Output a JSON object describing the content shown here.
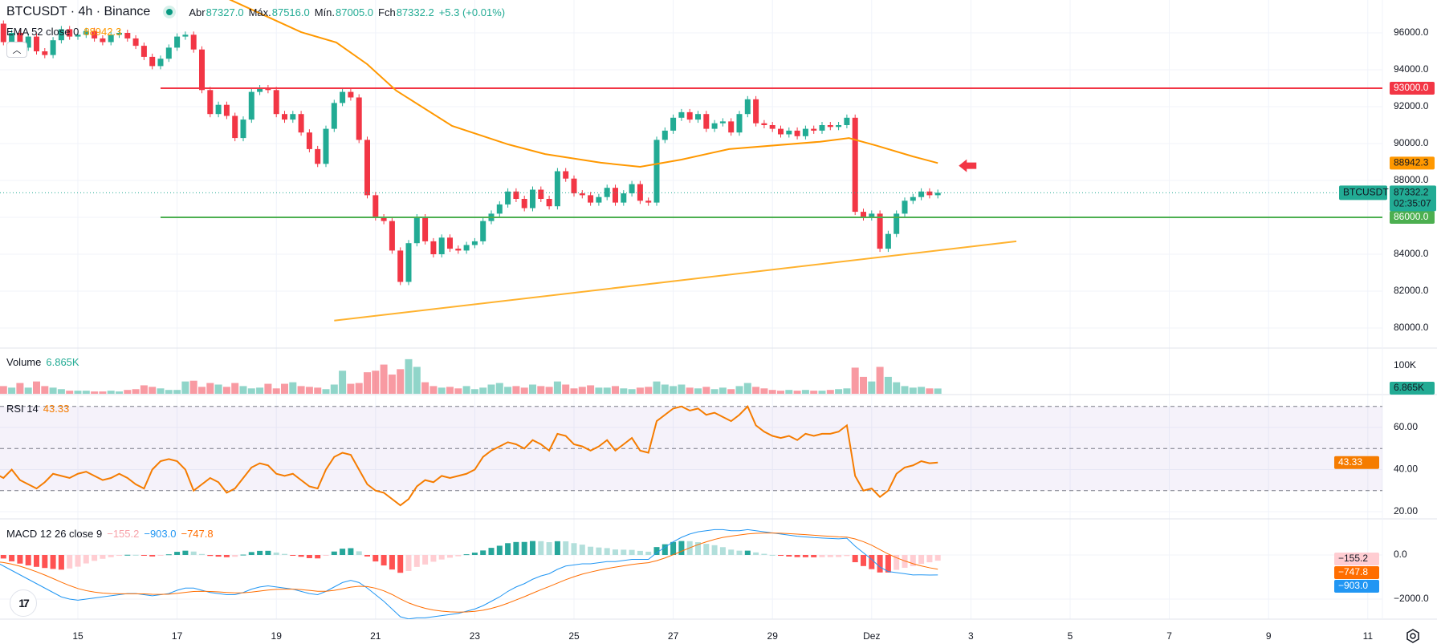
{
  "header": {
    "symbol_title": "BTCUSDT · 4h · Binance",
    "status_icon": "market-open-dot-icon",
    "open_label": "Abr",
    "open": "87327.0",
    "high_label": "Máx.",
    "high": "87516.0",
    "low_label": "Mín.",
    "low": "87005.0",
    "close_label": "Fch",
    "close": "87332.2",
    "change": "+5.3 (+0.01%)",
    "collapse_icon": "chevron-up-icon"
  },
  "indicators": {
    "ema": {
      "label": "EMA 52 close 0",
      "value": "88942.3",
      "color": "#ff9800"
    },
    "volume": {
      "label": "Volume",
      "value": "6.865K"
    },
    "rsi": {
      "label": "RSI 14",
      "value": "43.33",
      "color": "#f57c00"
    },
    "macd": {
      "label": "MACD 12 26 close 9",
      "hist": "−155.2",
      "macd": "−903.0",
      "signal": "−747.8",
      "hist_color": "#ffcdd2",
      "macd_color": "#2196f3",
      "signal_color": "#ff6d00"
    }
  },
  "colors": {
    "up": "#22ab94",
    "down": "#f23645",
    "grid": "#f0f3fa"
  },
  "chart_data": {
    "type": "candlestick",
    "symbol": "BTCUSDT",
    "interval": "4h",
    "first_candle": "11-13 08:00",
    "closes": [
      96500,
      95500,
      96000,
      95200,
      95800,
      95000,
      94800,
      95600,
      96200,
      95800,
      95900,
      96100,
      95700,
      95500,
      95900,
      96000,
      95700,
      95300,
      94700,
      94200,
      94600,
      95200,
      95800,
      95900,
      95100,
      92900,
      91600,
      92100,
      91500,
      90300,
      91300,
      92800,
      93000,
      92900,
      91600,
      91300,
      91600,
      90600,
      89700,
      88900,
      90800,
      92200,
      92800,
      92500,
      90200,
      87200,
      86000,
      85800,
      84200,
      82500,
      84600,
      86000,
      84700,
      84000,
      84900,
      84300,
      84200,
      84500,
      84700,
      85800,
      86200,
      86700,
      87400,
      87000,
      86500,
      87500,
      87000,
      86600,
      88500,
      88100,
      87300,
      87200,
      86800,
      87100,
      87600,
      86800,
      87300,
      87800,
      86900,
      86800,
      90200,
      90700,
      91400,
      91700,
      91300,
      91600,
      90800,
      91100,
      91200,
      90600,
      91600,
      92400,
      91100,
      91000,
      90800,
      90500,
      90700,
      90400,
      90800,
      90700,
      91000,
      90900,
      91000,
      91400,
      86300,
      86000,
      86200,
      84300,
      85100,
      86200,
      86900,
      87100,
      87400,
      87200,
      87332.2
    ],
    "volume_k": [
      18,
      10,
      8,
      14,
      8,
      16,
      10,
      8,
      6,
      4,
      4,
      4,
      3,
      3,
      4,
      3,
      5,
      6,
      11,
      9,
      7,
      5,
      5,
      16,
      17,
      9,
      14,
      12,
      9,
      14,
      10,
      7,
      8,
      13,
      7,
      13,
      15,
      10,
      9,
      8,
      6,
      12,
      30,
      13,
      14,
      28,
      30,
      38,
      25,
      32,
      45,
      35,
      15,
      10,
      8,
      9,
      7,
      10,
      6,
      8,
      12,
      14,
      9,
      10,
      8,
      12,
      10,
      9,
      16,
      12,
      7,
      9,
      11,
      8,
      8,
      10,
      7,
      6,
      8,
      9,
      16,
      12,
      10,
      12,
      8,
      7,
      9,
      6,
      8,
      6,
      10,
      14,
      9,
      7,
      5,
      4,
      5,
      4,
      5,
      4,
      4,
      5,
      6,
      7,
      34,
      22,
      16,
      35,
      22,
      15,
      10,
      8,
      9,
      7,
      6.865
    ],
    "rsi": [
      38,
      36,
      40,
      35,
      33,
      31,
      34,
      38,
      37,
      36,
      38,
      39,
      37,
      35,
      36,
      38,
      36,
      33,
      31,
      40,
      44,
      45,
      44,
      40,
      30,
      33,
      36,
      34,
      29,
      31,
      36,
      41,
      43,
      42,
      38,
      37,
      38,
      35,
      32,
      31,
      40,
      46,
      48,
      47,
      40,
      33,
      30,
      29,
      26,
      23,
      26,
      32,
      35,
      34,
      37,
      36,
      37,
      38,
      40,
      46,
      49,
      51,
      53,
      52,
      50,
      54,
      52,
      49,
      57,
      56,
      52,
      51,
      49,
      51,
      54,
      49,
      52,
      55,
      49,
      48,
      63,
      66,
      69,
      70,
      68,
      69,
      66,
      67,
      65,
      63,
      66,
      70,
      61,
      58,
      56,
      55,
      56,
      54,
      57,
      56,
      57,
      57,
      58,
      61,
      37,
      30,
      31,
      27,
      30,
      38,
      41,
      42,
      44,
      43,
      43.33
    ],
    "macd": [
      -300,
      -500,
      -700,
      -900,
      -1100,
      -1300,
      -1500,
      -1700,
      -1900,
      -2000,
      -2050,
      -2000,
      -1950,
      -1900,
      -1850,
      -1800,
      -1750,
      -1750,
      -1800,
      -1850,
      -1800,
      -1750,
      -1600,
      -1500,
      -1500,
      -1600,
      -1700,
      -1750,
      -1800,
      -1800,
      -1700,
      -1550,
      -1450,
      -1400,
      -1450,
      -1500,
      -1550,
      -1650,
      -1750,
      -1800,
      -1650,
      -1450,
      -1250,
      -1150,
      -1250,
      -1500,
      -1800,
      -2100,
      -2450,
      -2800,
      -2900,
      -2850,
      -2850,
      -2800,
      -2750,
      -2700,
      -2650,
      -2550,
      -2450,
      -2300,
      -2100,
      -1900,
      -1650,
      -1450,
      -1300,
      -1100,
      -950,
      -850,
      -650,
      -500,
      -450,
      -400,
      -400,
      -350,
      -300,
      -300,
      -250,
      -200,
      -200,
      -200,
      100,
      350,
      600,
      800,
      950,
      1050,
      1100,
      1150,
      1150,
      1100,
      1100,
      1150,
      1100,
      1050,
      1000,
      950,
      900,
      850,
      820,
      790,
      770,
      750,
      730,
      760,
      400,
      100,
      -200,
      -550,
      -750,
      -800,
      -850,
      -903,
      -900,
      -910,
      -903
    ],
    "ema52": [
      [
        "11-17 12:00",
        98500
      ],
      [
        "11-18 02:00",
        97780
      ],
      [
        "11-19 12:00",
        96040
      ],
      [
        "11-20 05:00",
        95480
      ],
      [
        "11-20 20:00",
        94300
      ],
      [
        "11-21 10:00",
        92870
      ],
      [
        "11-22 13:00",
        90960
      ],
      [
        "11-23 16:00",
        89960
      ],
      [
        "11-24 10:00",
        89430
      ],
      [
        "11-25 13:00",
        88960
      ],
      [
        "11-26 08:00",
        88740
      ],
      [
        "11-27 04:00",
        89130
      ],
      [
        "11-28 03:00",
        89700
      ],
      [
        "11-29 23:00",
        90100
      ],
      [
        "11-30 13:00",
        90300
      ],
      [
        "12-01 02:00",
        89900
      ],
      [
        "12-01 20:00",
        89300
      ],
      [
        "12-02 08:00",
        88942.3
      ]
    ],
    "hlines": [
      {
        "price": 93000,
        "label": "93000.0",
        "color": "#f23645",
        "from": "11-16 16:00"
      },
      {
        "price": 86000,
        "label": "86000.0",
        "color": "#4caf50",
        "from": "11-16 16:00"
      }
    ],
    "trendline": {
      "from": [
        "11-20 04:00",
        80400
      ],
      "to": [
        "12-03 22:00",
        84700
      ],
      "color": "#ffb22e"
    },
    "arrow": {
      "direction": "left",
      "time": "12-02 22:00",
      "price": 88800,
      "color": "#f23645"
    },
    "last_price": {
      "symbol": "BTCUSDT",
      "price": 87332.2,
      "label": "87332.2",
      "countdown": "02:35:07",
      "color": "#22ab94"
    },
    "ema_label": "88942.3",
    "price_ticks": [
      "96000.0",
      "94000.0",
      "92000.0",
      "90000.0",
      "88000.0",
      "84000.0",
      "82000.0",
      "80000.0"
    ],
    "volume_ticks": [
      "100K"
    ],
    "rsi_ticks": [
      "60.00",
      "40.00",
      "20.00"
    ],
    "rsi_levels": [
      70,
      50,
      30
    ],
    "macd_ticks": [
      "0.0",
      "−2000.0"
    ],
    "x_ticks": [
      [
        "15",
        "11-15 00:00"
      ],
      [
        "17",
        "11-17 00:00"
      ],
      [
        "19",
        "11-19 00:00"
      ],
      [
        "21",
        "11-21 00:00"
      ],
      [
        "23",
        "11-23 00:00"
      ],
      [
        "25",
        "11-25 00:00"
      ],
      [
        "27",
        "11-27 00:00"
      ],
      [
        "29",
        "11-29 00:00"
      ],
      [
        "Dez",
        "12-01 00:00"
      ],
      [
        "3",
        "12-03 00:00"
      ],
      [
        "5",
        "12-05 00:00"
      ],
      [
        "7",
        "12-07 00:00"
      ],
      [
        "9",
        "12-09 00:00"
      ],
      [
        "11",
        "12-11 00:00"
      ]
    ]
  },
  "footer": {
    "logo": "TV",
    "logo_icon": "tradingview-logo-icon",
    "settings_icon": "gear-icon"
  }
}
